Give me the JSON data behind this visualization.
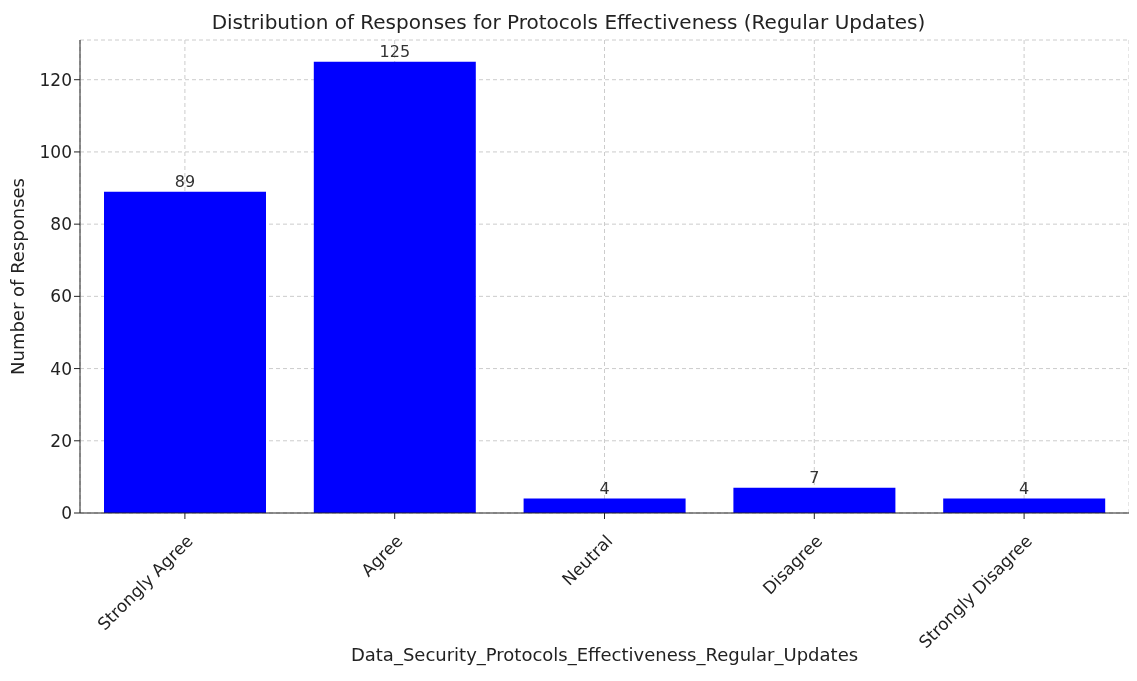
{
  "chart_data": {
    "type": "bar",
    "title": "Distribution of Responses for Protocols Effectiveness (Regular Updates)",
    "xlabel": "Data_Security_Protocols_Effectiveness_Regular_Updates",
    "ylabel": "Number of Responses",
    "categories": [
      "Strongly Agree",
      "Agree",
      "Neutral",
      "Disagree",
      "Strongly Disagree"
    ],
    "values": [
      89,
      125,
      4,
      7,
      4
    ],
    "color": "#0000ff",
    "ylim": [
      0,
      131
    ],
    "yticks": [
      0,
      20,
      40,
      60,
      80,
      100,
      120
    ],
    "grid": true,
    "data_labels": true
  }
}
